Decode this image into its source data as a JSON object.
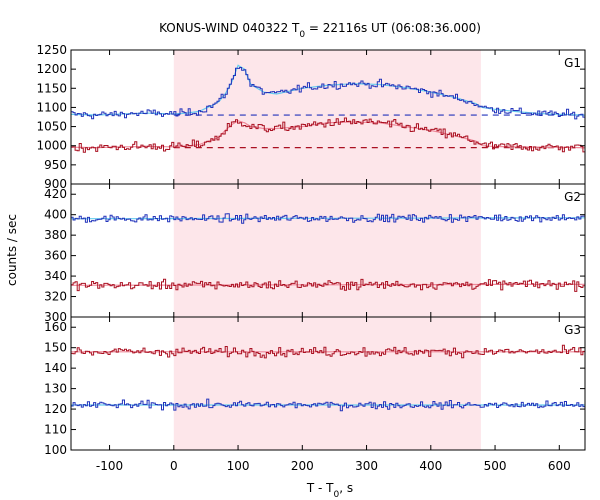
{
  "chart_data": {
    "type": "line",
    "title_main": "KONUS-WIND 040322 T",
    "title_sub": "0",
    "title_rest": " = 22116s UT (06:08:36.000)",
    "xlabel_main": "T - T",
    "xlabel_sub": "0",
    "xlabel_rest": ", s",
    "ylabel": "counts / sec",
    "xlim": [
      -160,
      640
    ],
    "x_ticks": [
      -100,
      0,
      100,
      200,
      300,
      400,
      500,
      600
    ],
    "x_tick_labels": [
      "-100",
      "0",
      "100",
      "200",
      "300",
      "400",
      "500",
      "600"
    ],
    "highlight_interval": [
      0,
      478
    ],
    "colors": {
      "blue": "#2233bb",
      "red": "#aa1122",
      "fit_blue": "#66ccee",
      "fit_red": "#ee8899",
      "highlight": "#fde6ea"
    },
    "panels": [
      {
        "label": "G1",
        "ylim": [
          900,
          1250
        ],
        "y_ticks": [
          900,
          950,
          1000,
          1050,
          1100,
          1150,
          1200,
          1250
        ],
        "y_tick_labels": [
          "900",
          "950",
          "1000",
          "1050",
          "1100",
          "1150",
          "1200",
          "1250"
        ],
        "background": [
          {
            "color": "blue",
            "y": 1080
          },
          {
            "color": "red",
            "y": 995
          }
        ],
        "series": [
          {
            "color": "blue",
            "x": [
              -160,
              -120,
              -80,
              -40,
              0,
              20,
              40,
              50,
              60,
              70,
              80,
              90,
              100,
              110,
              120,
              140,
              160,
              200,
              240,
              280,
              320,
              360,
              400,
              440,
              470,
              480,
              500,
              540,
              580,
              640
            ],
            "y": [
              1082,
              1080,
              1083,
              1085,
              1083,
              1085,
              1090,
              1098,
              1105,
              1115,
              1135,
              1165,
              1210,
              1200,
              1160,
              1140,
              1135,
              1150,
              1158,
              1162,
              1160,
              1152,
              1140,
              1125,
              1110,
              1100,
              1095,
              1088,
              1083,
              1080
            ]
          },
          {
            "color": "red",
            "x": [
              -160,
              -120,
              -80,
              -40,
              0,
              20,
              40,
              50,
              60,
              70,
              80,
              90,
              100,
              110,
              120,
              140,
              160,
              200,
              240,
              280,
              320,
              360,
              400,
              440,
              470,
              480,
              500,
              540,
              580,
              640
            ],
            "y": [
              996,
              995,
              997,
              998,
              997,
              999,
              1003,
              1010,
              1015,
              1022,
              1040,
              1055,
              1065,
              1060,
              1050,
              1045,
              1045,
              1050,
              1060,
              1062,
              1060,
              1050,
              1040,
              1025,
              1012,
              1000,
              998,
              997,
              996,
              995
            ]
          }
        ]
      },
      {
        "label": "G2",
        "ylim": [
          300,
          430
        ],
        "y_ticks": [
          300,
          320,
          340,
          360,
          380,
          400,
          420
        ],
        "y_tick_labels": [
          "300",
          "320",
          "340",
          "360",
          "380",
          "400",
          "420"
        ],
        "background": [],
        "series": [
          {
            "color": "blue",
            "x": [
              -160,
              640
            ],
            "y": [
              396,
              397
            ]
          },
          {
            "color": "red",
            "x": [
              -160,
              640
            ],
            "y": [
              331,
              332
            ]
          }
        ]
      },
      {
        "label": "G3",
        "ylim": [
          100,
          165
        ],
        "y_ticks": [
          100,
          110,
          120,
          130,
          140,
          150,
          160
        ],
        "y_tick_labels": [
          "100",
          "110",
          "120",
          "130",
          "140",
          "150",
          "160"
        ],
        "background": [],
        "series": [
          {
            "color": "red",
            "x": [
              -160,
              640
            ],
            "y": [
              148,
              148
            ]
          },
          {
            "color": "blue",
            "x": [
              -160,
              640
            ],
            "y": [
              122,
              122
            ]
          }
        ]
      }
    ]
  }
}
